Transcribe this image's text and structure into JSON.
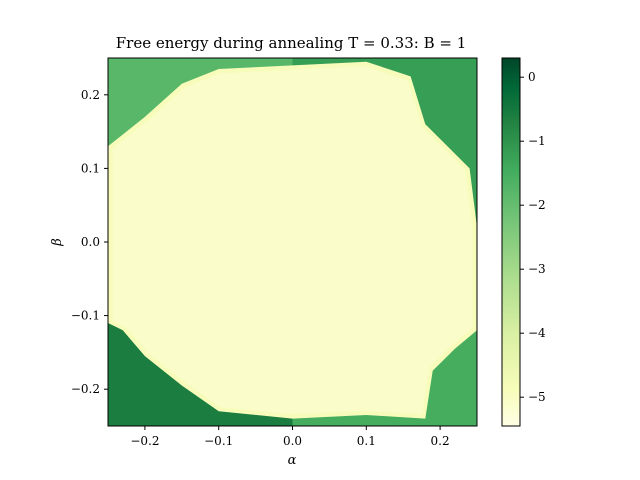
{
  "chart_data": {
    "type": "heatmap",
    "title": "Free energy during annealing T = 0.33:  B = 1",
    "xlabel": "α",
    "ylabel": "β",
    "xlim": [
      -0.25,
      0.25
    ],
    "ylim": [
      -0.25,
      0.25
    ],
    "x_ticks": [
      -0.2,
      -0.1,
      0.0,
      0.1,
      0.2
    ],
    "x_tick_labels": [
      "−0.2",
      "−0.1",
      "0.0",
      "0.1",
      "0.2"
    ],
    "y_ticks": [
      -0.2,
      -0.1,
      0.0,
      0.1,
      0.2
    ],
    "y_tick_labels": [
      "−0.2",
      "−0.1",
      "0.0",
      "0.1",
      "0.2"
    ],
    "colorbar": {
      "colormap": "YlGn",
      "range": [
        -5.45,
        0.3
      ],
      "ticks": [
        0,
        -1,
        -2,
        -3,
        -4,
        -5
      ],
      "tick_labels": [
        "0",
        "−1",
        "−2",
        "−3",
        "−4",
        "−5"
      ]
    },
    "description_points": {
      "center_value": -5.1,
      "boundary_polygon": [
        [
          -0.25,
          0.13
        ],
        [
          -0.2,
          0.17
        ],
        [
          -0.15,
          0.215
        ],
        [
          -0.1,
          0.235
        ],
        [
          0.0,
          0.24
        ],
        [
          0.1,
          0.245
        ],
        [
          0.16,
          0.225
        ],
        [
          0.18,
          0.16
        ],
        [
          0.24,
          0.1
        ],
        [
          0.25,
          0.02
        ],
        [
          0.25,
          -0.12
        ],
        [
          0.22,
          -0.145
        ],
        [
          0.19,
          -0.175
        ],
        [
          0.18,
          -0.24
        ],
        [
          0.1,
          -0.235
        ],
        [
          0.0,
          -0.24
        ],
        [
          -0.1,
          -0.23
        ],
        [
          -0.15,
          -0.195
        ],
        [
          -0.2,
          -0.155
        ],
        [
          -0.23,
          -0.12
        ],
        [
          -0.25,
          -0.11
        ]
      ],
      "corner_values": {
        "top-left": -1.8,
        "top-right": -1.2,
        "bottom-left": -0.6,
        "bottom-right": -1.5
      }
    }
  }
}
